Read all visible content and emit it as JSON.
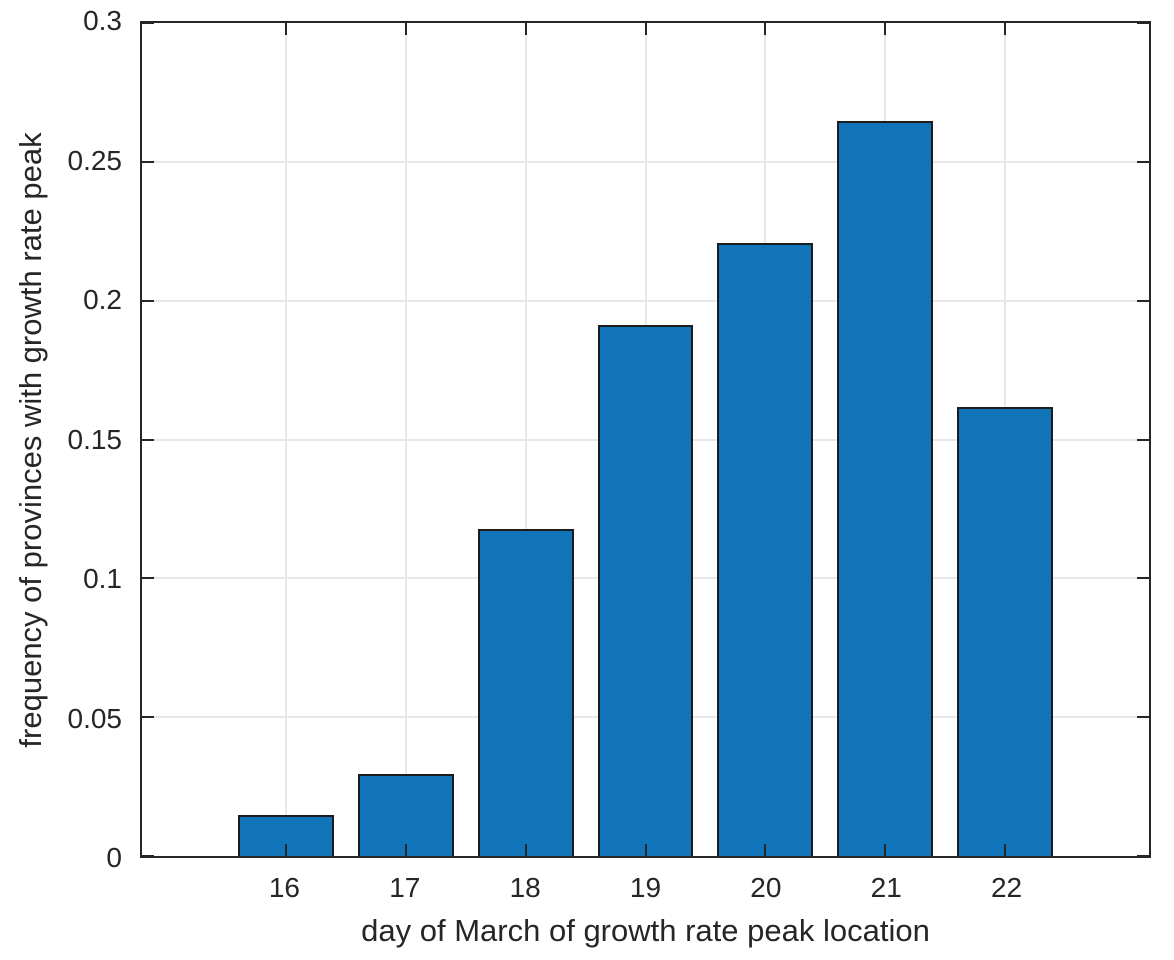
{
  "chart_data": {
    "type": "bar",
    "xlabel": "day of March of growth rate peak location",
    "ylabel": "frequency of provinces with growth rate peak",
    "categories": [
      "16",
      "17",
      "18",
      "19",
      "20",
      "21",
      "22"
    ],
    "x": [
      16,
      17,
      18,
      19,
      20,
      21,
      22
    ],
    "values": [
      0.0147,
      0.0294,
      0.1176,
      0.1912,
      0.2206,
      0.2647,
      0.1618
    ],
    "xlim": [
      14.8,
      23.2
    ],
    "ylim": [
      0,
      0.3
    ],
    "yticks": {
      "values": [
        0,
        0.05,
        0.1,
        0.15,
        0.2,
        0.25,
        0.3
      ],
      "labels": [
        "0",
        "0.05",
        "0.1",
        "0.15",
        "0.2",
        "0.25",
        "0.3"
      ]
    },
    "grid": true,
    "legend_position": "none",
    "bar_width_ratio": 0.8,
    "colors": {
      "bar_fill": "#1174b9",
      "bar_edge": "#1c1c1c",
      "grid": "#e8e8e8",
      "axis": "#262626",
      "text": "#262626"
    }
  }
}
